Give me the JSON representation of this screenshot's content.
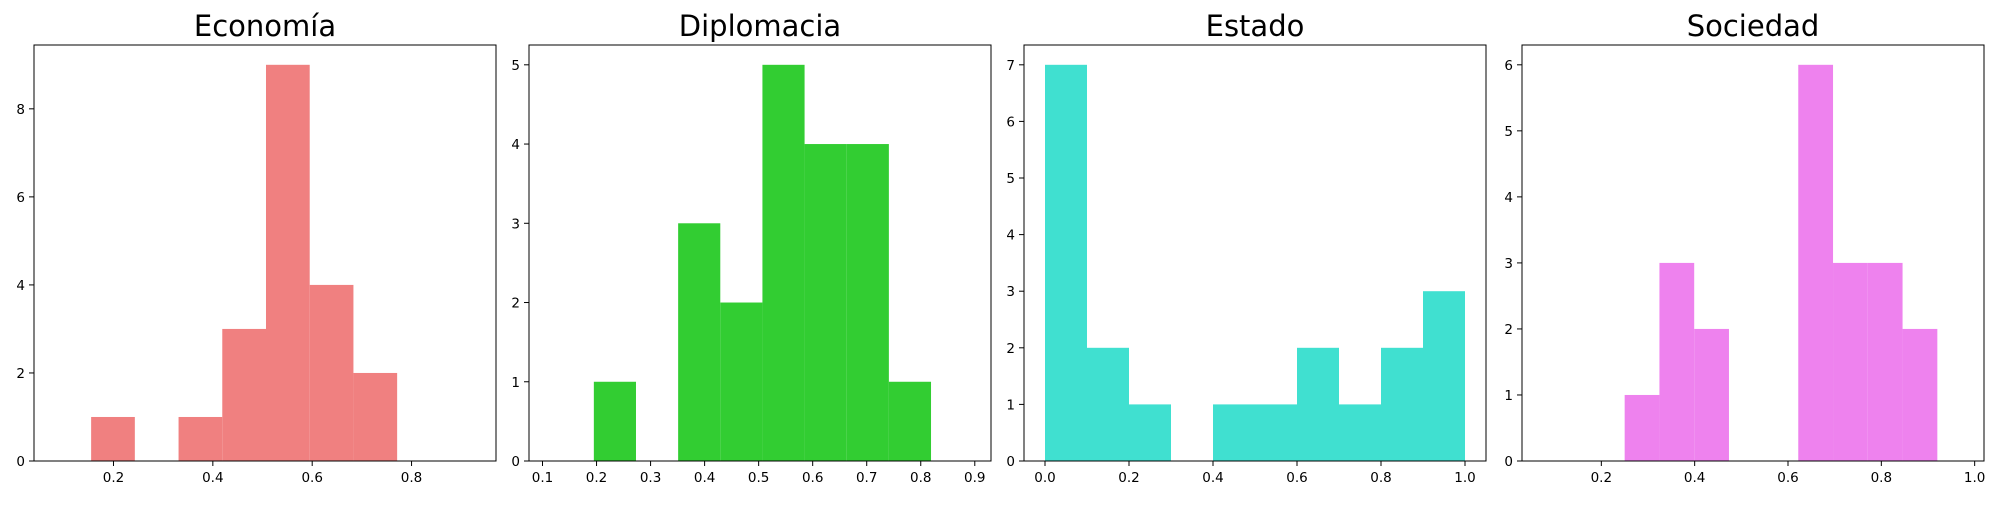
{
  "chart_data": [
    {
      "type": "bar",
      "title": "Economía",
      "color": "#f08080",
      "xlim": [
        0.04,
        0.97
      ],
      "ylim": [
        0,
        9.45
      ],
      "xticks": [
        0.2,
        0.4,
        0.6,
        0.8
      ],
      "xtick_labels": [
        "0.2",
        "0.4",
        "0.6",
        "0.8"
      ],
      "yticks": [
        0,
        2,
        4,
        6,
        8
      ],
      "ytick_labels": [
        "0",
        "2",
        "4",
        "6",
        "8"
      ],
      "bins": [
        {
          "x0": 0.155,
          "x1": 0.243,
          "count": 1
        },
        {
          "x0": 0.331,
          "x1": 0.419,
          "count": 1
        },
        {
          "x0": 0.419,
          "x1": 0.507,
          "count": 3
        },
        {
          "x0": 0.507,
          "x1": 0.595,
          "count": 9
        },
        {
          "x0": 0.595,
          "x1": 0.683,
          "count": 4
        },
        {
          "x0": 0.683,
          "x1": 0.771,
          "count": 2
        }
      ]
    },
    {
      "type": "bar",
      "title": "Diplomacia",
      "color": "#32cd32",
      "xlim": [
        0.075,
        0.93
      ],
      "ylim": [
        0,
        5.25
      ],
      "xticks": [
        0.1,
        0.2,
        0.3,
        0.4,
        0.5,
        0.6,
        0.7,
        0.8,
        0.9
      ],
      "xtick_labels": [
        "0.1",
        "0.2",
        "0.3",
        "0.4",
        "0.5",
        "0.6",
        "0.7",
        "0.8",
        "0.9"
      ],
      "yticks": [
        0,
        1,
        2,
        3,
        4,
        5
      ],
      "ytick_labels": [
        "0",
        "1",
        "2",
        "3",
        "4",
        "5"
      ],
      "bins": [
        {
          "x0": 0.195,
          "x1": 0.273,
          "count": 1
        },
        {
          "x0": 0.351,
          "x1": 0.429,
          "count": 3
        },
        {
          "x0": 0.429,
          "x1": 0.507,
          "count": 2
        },
        {
          "x0": 0.507,
          "x1": 0.585,
          "count": 5
        },
        {
          "x0": 0.585,
          "x1": 0.663,
          "count": 4
        },
        {
          "x0": 0.663,
          "x1": 0.741,
          "count": 4
        },
        {
          "x0": 0.741,
          "x1": 0.819,
          "count": 1
        }
      ]
    },
    {
      "type": "bar",
      "title": "Estado",
      "color": "#40e0d0",
      "xlim": [
        -0.05,
        1.05
      ],
      "ylim": [
        0,
        7.35
      ],
      "xticks": [
        0.0,
        0.2,
        0.4,
        0.6,
        0.8,
        1.0
      ],
      "xtick_labels": [
        "0.0",
        "0.2",
        "0.4",
        "0.6",
        "0.8",
        "1.0"
      ],
      "yticks": [
        0,
        1,
        2,
        3,
        4,
        5,
        6,
        7
      ],
      "ytick_labels": [
        "0",
        "1",
        "2",
        "3",
        "4",
        "5",
        "6",
        "7"
      ],
      "bins": [
        {
          "x0": 0.0,
          "x1": 0.1,
          "count": 7
        },
        {
          "x0": 0.1,
          "x1": 0.2,
          "count": 2
        },
        {
          "x0": 0.2,
          "x1": 0.3,
          "count": 1
        },
        {
          "x0": 0.4,
          "x1": 0.5,
          "count": 1
        },
        {
          "x0": 0.5,
          "x1": 0.6,
          "count": 1
        },
        {
          "x0": 0.6,
          "x1": 0.7,
          "count": 2
        },
        {
          "x0": 0.7,
          "x1": 0.8,
          "count": 1
        },
        {
          "x0": 0.8,
          "x1": 0.9,
          "count": 2
        },
        {
          "x0": 0.9,
          "x1": 1.0,
          "count": 3
        }
      ]
    },
    {
      "type": "bar",
      "title": "Sociedad",
      "color": "#ee82ee",
      "xlim": [
        0.03,
        1.02
      ],
      "ylim": [
        0,
        6.3
      ],
      "xticks": [
        0.2,
        0.4,
        0.6,
        0.8,
        1.0
      ],
      "xtick_labels": [
        "0.2",
        "0.4",
        "0.6",
        "0.8",
        "1.0"
      ],
      "yticks": [
        0,
        1,
        2,
        3,
        4,
        5,
        6
      ],
      "ytick_labels": [
        "0",
        "1",
        "2",
        "3",
        "4",
        "5",
        "6"
      ],
      "bins": [
        {
          "x0": 0.25,
          "x1": 0.3245,
          "count": 1
        },
        {
          "x0": 0.3245,
          "x1": 0.399,
          "count": 3
        },
        {
          "x0": 0.399,
          "x1": 0.4735,
          "count": 2
        },
        {
          "x0": 0.622,
          "x1": 0.6965,
          "count": 6
        },
        {
          "x0": 0.6965,
          "x1": 0.771,
          "count": 3
        },
        {
          "x0": 0.771,
          "x1": 0.8455,
          "count": 3
        },
        {
          "x0": 0.8455,
          "x1": 0.92,
          "count": 2
        }
      ]
    }
  ]
}
